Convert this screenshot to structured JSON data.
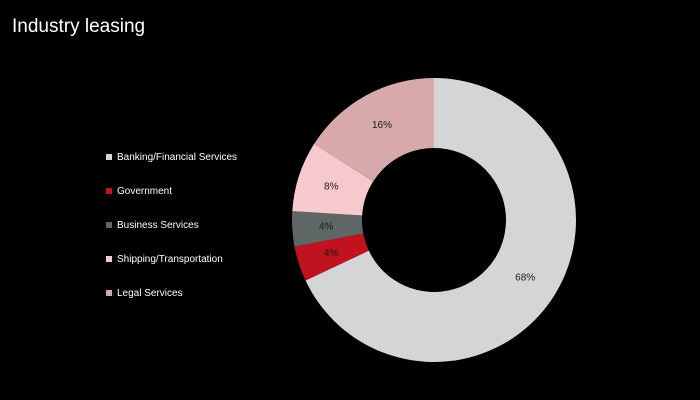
{
  "page": {
    "title": "Industry leasing"
  },
  "chart_data": {
    "type": "pie",
    "variant": "donut",
    "title": "Industry leasing",
    "legend_position": "left",
    "series": [
      {
        "name": "Banking/Financial Services",
        "value": 68,
        "label": "68%",
        "color": "#d4d5d6"
      },
      {
        "name": "Government",
        "value": 4,
        "label": "4%",
        "color": "#c1121f"
      },
      {
        "name": "Business Services",
        "value": 4,
        "label": "4%",
        "color": "#5f6766"
      },
      {
        "name": "Shipping/Transportation",
        "value": 8,
        "label": "8%",
        "color": "#f6c9cc"
      },
      {
        "name": "Legal Services",
        "value": 16,
        "label": "16%",
        "color": "#d8a9aa"
      }
    ]
  }
}
